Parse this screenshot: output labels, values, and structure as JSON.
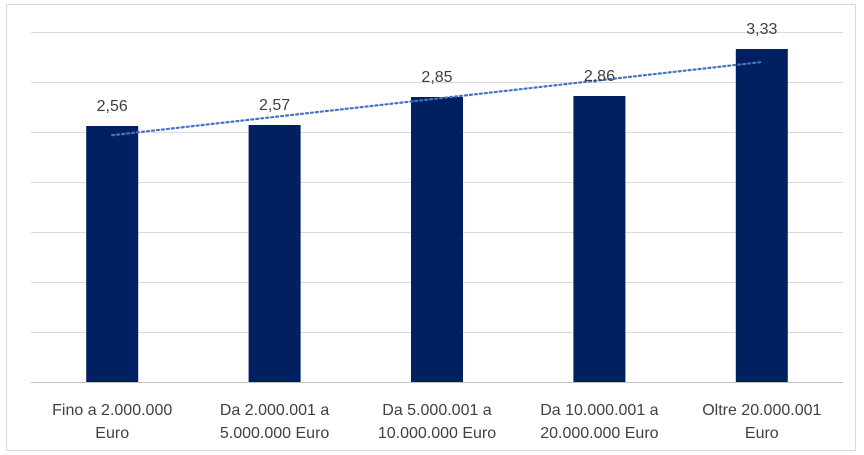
{
  "chart_data": {
    "type": "bar",
    "categories": [
      [
        "Fino a 2.000.000",
        "Euro"
      ],
      [
        "Da 2.000.001 a",
        "5.000.000 Euro"
      ],
      [
        "Da 5.000.001 a",
        "10.000.000 Euro"
      ],
      [
        "Da 10.000.001 a",
        "20.000.000 Euro"
      ],
      [
        "Oltre 20.000.001",
        "Euro"
      ]
    ],
    "values": [
      2.56,
      2.57,
      2.85,
      2.86,
      3.33
    ],
    "data_labels": [
      "2,56",
      "2,57",
      "2,85",
      "2,86",
      "3,33"
    ],
    "trendline": {
      "type": "linear",
      "style": "dotted"
    },
    "ylim": [
      0,
      3.5
    ],
    "y_grid_step": 0.5,
    "grid": true,
    "legend": "none",
    "title": "",
    "xlabel": "",
    "ylabel": "",
    "colors": {
      "bar": "#002060",
      "trendline": "#4472c4",
      "grid": "#d9d9d9",
      "text": "#404040"
    }
  }
}
